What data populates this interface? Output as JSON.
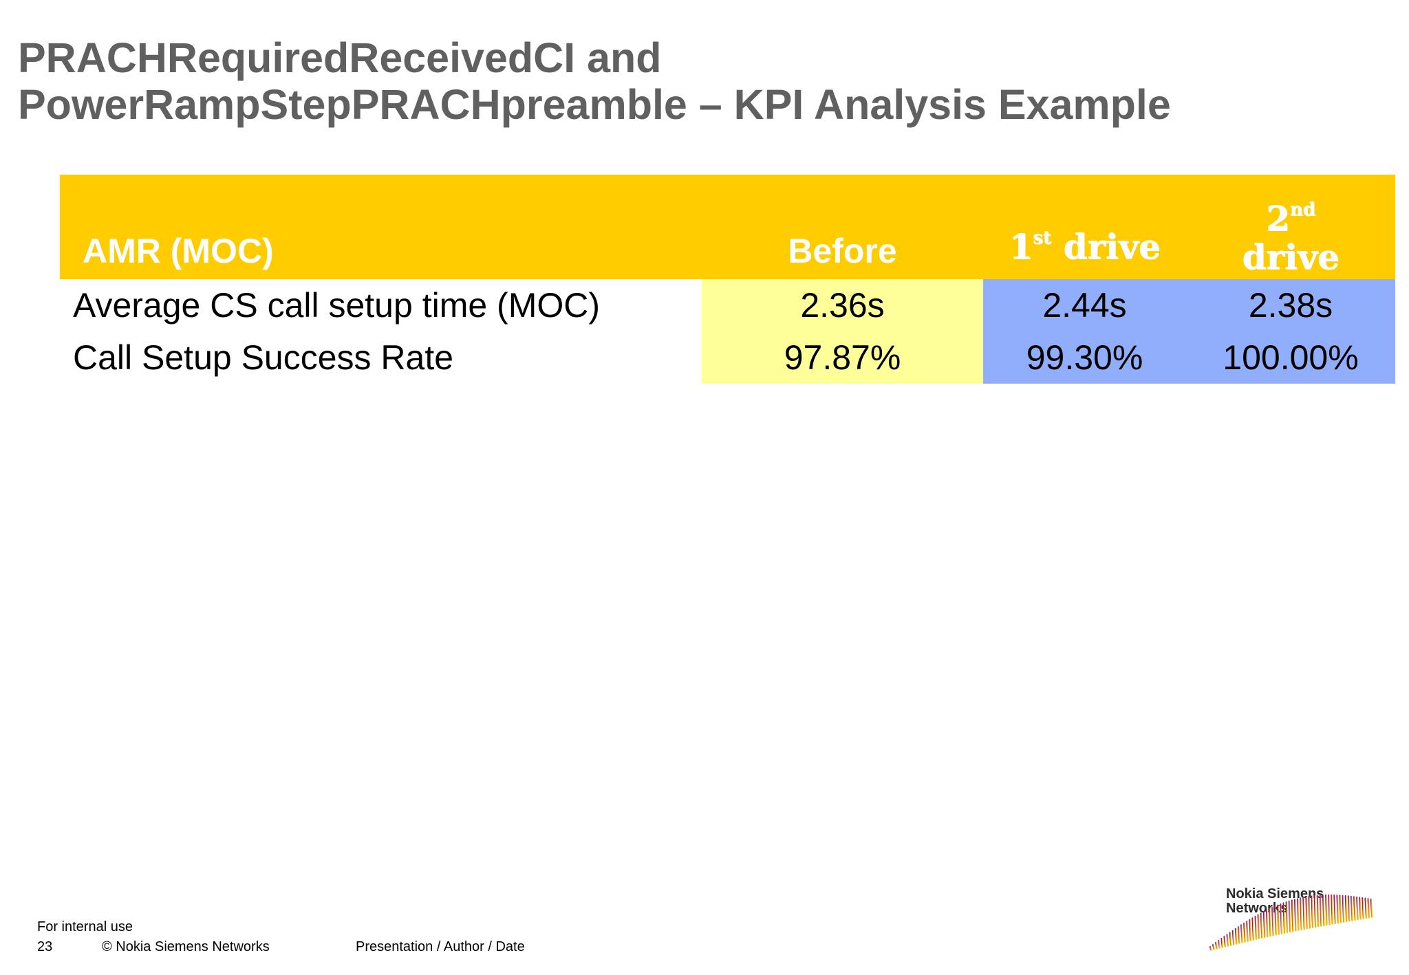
{
  "title": {
    "line1": "PRACHRequiredReceivedCI and",
    "line2": "PowerRampStepPRACHpreamble – KPI Analysis Example"
  },
  "table": {
    "headers": {
      "label": "AMR (MOC)",
      "before": "Before",
      "drive1_num": "1",
      "drive1_sup": "st",
      "drive1_word": " drive",
      "drive2_num": "2",
      "drive2_sup": "nd",
      "drive2_word": "drive"
    },
    "rows": [
      {
        "label": "Average CS call setup time (MOC)",
        "before": "2.36s",
        "drive1": "2.44s",
        "drive2": "2.38s"
      },
      {
        "label": "Call Setup Success Rate",
        "before": "97.87%",
        "drive1": "99.30%",
        "drive2": "100.00%"
      }
    ],
    "colors": {
      "header_bg": "#ffcc00",
      "before_bg": "#ffff99",
      "drive_bg": "#91aefc"
    }
  },
  "footer": {
    "classification": "For internal use",
    "page_number": "23",
    "copyright": "© Nokia Siemens Networks",
    "presentation": "Presentation / Author / Date"
  },
  "logo": {
    "line1": "Nokia Siemens",
    "line2": "Networks",
    "icon": "nsn-wave-logo-icon"
  }
}
